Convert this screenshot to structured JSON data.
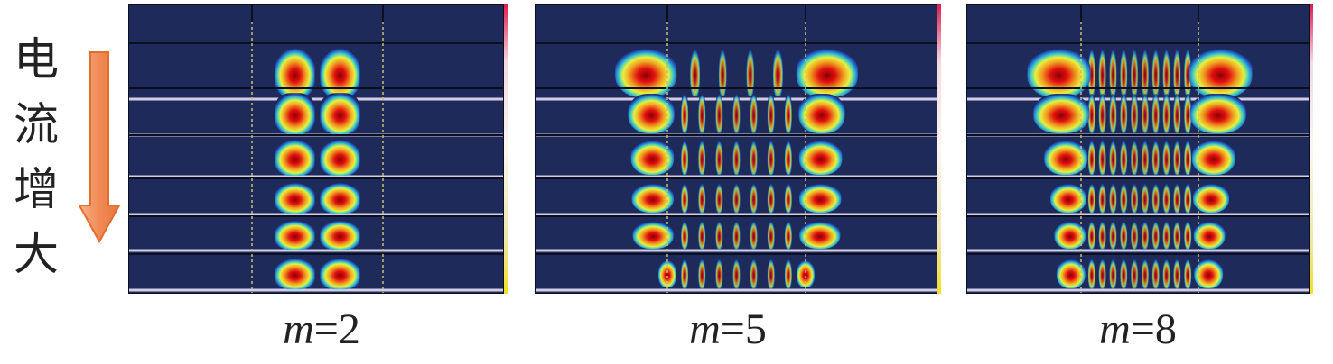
{
  "side_label": {
    "chars": [
      "电",
      "流",
      "增",
      "大"
    ]
  },
  "panels": [
    {
      "label_var": "m",
      "label_eq": "=2",
      "rows": [
        {
          "outer": 0,
          "inner": 2
        },
        {
          "outer": 0,
          "inner": 2
        },
        {
          "outer": 0,
          "inner": 2
        },
        {
          "outer": 0,
          "inner": 2
        },
        {
          "outer": 0,
          "inner": 2
        },
        {
          "outer": 0,
          "inner": 2
        }
      ]
    },
    {
      "label_var": "m",
      "label_eq": "=5",
      "rows": [
        {
          "outer": 1,
          "inner": 4
        },
        {
          "outer": 0.3,
          "inner": 7
        },
        {
          "outer": 0.15,
          "inner": 7
        },
        {
          "outer": 0.1,
          "inner": 7
        },
        {
          "outer": 0.05,
          "inner": 7
        },
        {
          "outer": 0,
          "inner": 7
        }
      ]
    },
    {
      "label_var": "m",
      "label_eq": "=8",
      "rows": [
        {
          "outer": 1,
          "inner": 10
        },
        {
          "outer": 0.8,
          "inner": 10
        },
        {
          "outer": 0.45,
          "inner": 10
        },
        {
          "outer": 0.25,
          "inner": 10
        },
        {
          "outer": 0.12,
          "inner": 10
        },
        {
          "outer": 0.05,
          "inner": 10
        }
      ]
    }
  ]
}
